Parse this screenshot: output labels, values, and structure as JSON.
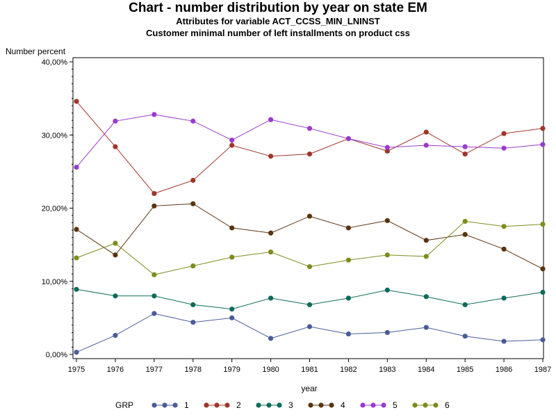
{
  "chart_data": {
    "type": "line",
    "title": "Chart - number distribution by year on state EM",
    "subtitles": [
      "Attributes for variable ACT_CCSS_MIN_LNINST",
      "Customer minimal number of left installments on product css"
    ],
    "xlabel": "year",
    "ylabel": "Number percent",
    "x": [
      "1975",
      "1976",
      "1977",
      "1978",
      "1979",
      "1980",
      "1981",
      "1982",
      "1983",
      "1984",
      "1985",
      "1986",
      "1987"
    ],
    "ylim": [
      0,
      40
    ],
    "yticks": [
      0,
      10,
      20,
      30,
      40
    ],
    "ytick_labels": [
      "0,00%",
      "10,00%",
      "20,00%",
      "30,00%",
      "40,00%"
    ],
    "legend_title": "GRP",
    "legend_position": "bottom",
    "grid": false,
    "series": [
      {
        "name": "1",
        "color": "#4a5c9a",
        "values": [
          0.3,
          2.6,
          5.6,
          4.4,
          5.0,
          2.2,
          3.8,
          2.8,
          3.0,
          3.7,
          2.5,
          1.8,
          2.0
        ]
      },
      {
        "name": "2",
        "color": "#a0352a",
        "values": [
          34.6,
          28.4,
          22.0,
          23.8,
          28.6,
          27.1,
          27.4,
          29.5,
          27.8,
          30.4,
          27.4,
          30.2,
          30.9
        ]
      },
      {
        "name": "3",
        "color": "#0e6b5a",
        "values": [
          8.9,
          8.0,
          8.0,
          6.8,
          6.2,
          7.7,
          6.8,
          7.7,
          8.8,
          7.9,
          6.8,
          7.7,
          8.5
        ]
      },
      {
        "name": "4",
        "color": "#5a3410",
        "values": [
          17.1,
          13.6,
          20.3,
          20.6,
          17.3,
          16.6,
          18.9,
          17.3,
          18.3,
          15.6,
          16.4,
          14.4,
          11.7
        ]
      },
      {
        "name": "5",
        "color": "#9a3ad0",
        "values": [
          25.6,
          31.9,
          32.8,
          31.9,
          29.3,
          32.1,
          30.9,
          29.5,
          28.3,
          28.6,
          28.4,
          28.2,
          28.7
        ]
      },
      {
        "name": "6",
        "color": "#7e8c1c",
        "values": [
          13.2,
          15.2,
          10.9,
          12.1,
          13.3,
          14.0,
          12.0,
          12.9,
          13.6,
          13.4,
          18.2,
          17.5,
          17.8
        ]
      }
    ]
  }
}
